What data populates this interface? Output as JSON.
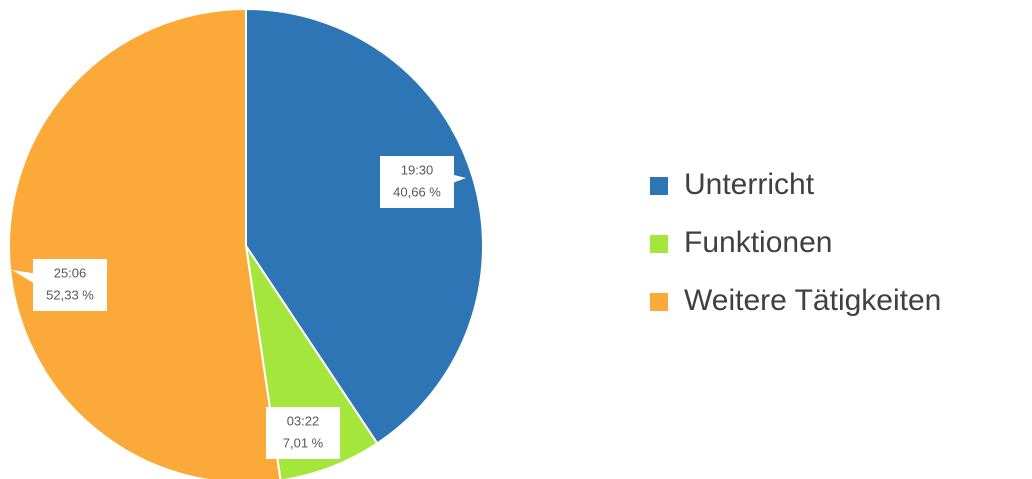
{
  "chart_data": {
    "type": "pie",
    "categories": [
      "Unterricht",
      "Funktionen",
      "Weitere Tätigkeiten"
    ],
    "values": [
      40.66,
      7.01,
      52.33
    ],
    "value_labels": [
      "40,66 %",
      "7,01 %",
      "52,33 %"
    ],
    "times": [
      "19:30",
      "03:22",
      "25:06"
    ],
    "colors": [
      "#2e75b6",
      "#a5e63c",
      "#fbaa3a"
    ],
    "legend": "right"
  }
}
